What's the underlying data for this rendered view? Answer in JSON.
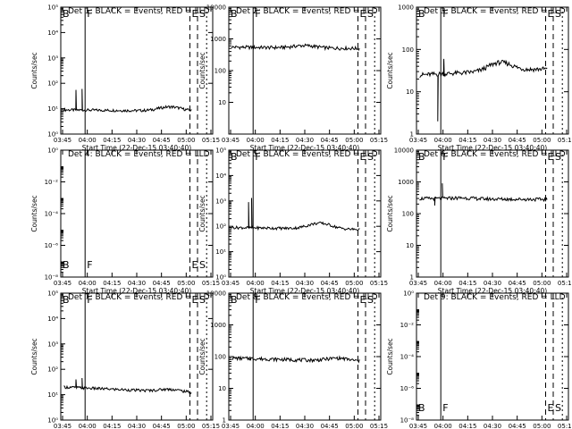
{
  "colors": {
    "events": "#000000",
    "lld": "#d00000",
    "frame": "#000000",
    "background": "#ffffff"
  },
  "x_tick_labels": [
    "03:45",
    "04:00",
    "04:15",
    "04:30",
    "04:45",
    "05:00",
    "05:15"
  ],
  "x_axis_label": "Start Time (22-Dec-15 03:40:40)",
  "y_axis_label": "Counts/sec",
  "chart_data": [
    {
      "type": "line",
      "title": "Det 1: BLACK = Events, RED = LLD",
      "xlim": [
        0,
        100
      ],
      "yscale": "log",
      "ylim": [
        1,
        100000
      ],
      "y_ticks": [
        {
          "v": 1,
          "label": "10⁰"
        },
        {
          "v": 100,
          "label": "10²"
        },
        {
          "v": 10000,
          "label": "10⁴"
        }
      ],
      "y_minor": [
        10,
        1000,
        100000
      ],
      "y_minor_labels": [
        "10¹",
        "10³",
        "10⁵"
      ],
      "markers": [
        {
          "x": 16,
          "label": "F"
        },
        {
          "x": 85,
          "label": "E"
        },
        {
          "x": 90,
          "label": "S"
        }
      ],
      "vlines": [
        {
          "x": 0,
          "style": "solid"
        },
        {
          "x": 16,
          "style": "solid"
        },
        {
          "x": 85,
          "style": "dashed"
        },
        {
          "x": 90,
          "style": "dashed"
        },
        {
          "x": 96,
          "style": "dotted"
        }
      ],
      "corner_labels": [
        {
          "pos": "top-left",
          "text": "B"
        }
      ],
      "lld": {
        "x_start": 0,
        "x_end": 86,
        "level": 60,
        "spikes": [
          {
            "x": 10,
            "v": 300
          },
          {
            "x": 14,
            "v": 700
          }
        ],
        "tail_bump": {
          "x": 95,
          "v": 120
        }
      },
      "events": {
        "x_start": 2,
        "x_end": 86,
        "level": 9,
        "drift_to": 8,
        "hump": {
          "x": 72,
          "v": 13
        },
        "spikes": [
          {
            "x": 10,
            "v": 55
          },
          {
            "x": 14,
            "v": 60
          }
        ]
      }
    },
    {
      "type": "line",
      "title": "Det 2: BLACK = Events, RED = LLD",
      "xlim": [
        0,
        100
      ],
      "yscale": "log",
      "ylim": [
        1,
        10000
      ],
      "y_ticks": [
        {
          "v": 10,
          "label": "10"
        },
        {
          "v": 100,
          "label": "100"
        },
        {
          "v": 1000,
          "label": "1000"
        },
        {
          "v": 10000,
          "label": "10000"
        }
      ],
      "y_minor": [],
      "y_minor_labels": [],
      "markers": [
        {
          "x": 16,
          "label": "F"
        },
        {
          "x": 85,
          "label": "E"
        },
        {
          "x": 90,
          "label": "S"
        }
      ],
      "vlines": [
        {
          "x": 0,
          "style": "solid"
        },
        {
          "x": 16,
          "style": "solid"
        },
        {
          "x": 85,
          "style": "dashed"
        },
        {
          "x": 90,
          "style": "dashed"
        },
        {
          "x": 96,
          "style": "dotted"
        }
      ],
      "corner_labels": [
        {
          "pos": "top-left",
          "text": "B"
        }
      ],
      "lld": {
        "x_start": 0,
        "x_end": 86,
        "level": 1400,
        "spikes": [],
        "tail_bump": {
          "x": 95,
          "v": 1800
        }
      },
      "events": {
        "x_start": 2,
        "x_end": 86,
        "level": 550,
        "drift_to": 500,
        "hump": {
          "x": 50,
          "v": 650
        },
        "spikes": []
      }
    },
    {
      "type": "line",
      "title": "Det 3: BLACK = Events, RED = LLD",
      "xlim": [
        0,
        100
      ],
      "yscale": "log",
      "ylim": [
        1,
        1000
      ],
      "y_ticks": [
        {
          "v": 1,
          "label": "1"
        },
        {
          "v": 10,
          "label": "10"
        },
        {
          "v": 100,
          "label": "100"
        },
        {
          "v": 1000,
          "label": "1000"
        }
      ],
      "y_minor": [],
      "y_minor_labels": [],
      "markers": [
        {
          "x": 16,
          "label": "F"
        },
        {
          "x": 85,
          "label": "E"
        },
        {
          "x": 90,
          "label": "S"
        }
      ],
      "vlines": [
        {
          "x": 0,
          "style": "solid"
        },
        {
          "x": 16,
          "style": "solid"
        },
        {
          "x": 85,
          "style": "dashed"
        },
        {
          "x": 90,
          "style": "dashed"
        },
        {
          "x": 96,
          "style": "dotted"
        }
      ],
      "corner_labels": [
        {
          "pos": "top-left",
          "text": "B"
        }
      ],
      "lld": {
        "x_start": 0,
        "x_end": 86,
        "level": 110,
        "spikes": [
          {
            "x": 16,
            "v": 180
          }
        ],
        "tail_bump": {
          "x": 93,
          "v": 900
        }
      },
      "events": {
        "x_start": 2,
        "x_end": 86,
        "level": 25,
        "drift_to": 35,
        "hump": {
          "x": 55,
          "v": 40
        },
        "spikes": [
          {
            "x": 14,
            "v": 2
          },
          {
            "x": 18,
            "v": 60
          }
        ]
      }
    },
    {
      "type": "line",
      "title": "Det 4: BLACK = Events, RED = LLD",
      "xlim": [
        0,
        100
      ],
      "yscale": "log",
      "ylim": [
        1e-08,
        1
      ],
      "y_ticks": [
        {
          "v": 1e-08,
          "label": "10⁻⁸"
        },
        {
          "v": 1e-06,
          "label": "10⁻⁶"
        },
        {
          "v": 0.0001,
          "label": "10⁻⁴"
        },
        {
          "v": 0.01,
          "label": "10⁻²"
        },
        {
          "v": 1,
          "label": "10⁰"
        }
      ],
      "y_minor": [],
      "y_minor_labels": [],
      "markers": [
        {
          "x": 0,
          "label": "B"
        },
        {
          "x": 16,
          "label": "F"
        },
        {
          "x": 85,
          "label": "E"
        },
        {
          "x": 90,
          "label": "S"
        }
      ],
      "vlines": [
        {
          "x": 0,
          "style": "solid"
        },
        {
          "x": 16,
          "style": "solid"
        },
        {
          "x": 85,
          "style": "dashed"
        },
        {
          "x": 90,
          "style": "dashed"
        },
        {
          "x": 96,
          "style": "dotted"
        }
      ],
      "corner_labels": [],
      "lld": null,
      "events": null
    },
    {
      "type": "line",
      "title": "Det 5: BLACK = Events, RED = LLD",
      "xlim": [
        0,
        100
      ],
      "yscale": "log",
      "ylim": [
        1,
        100000
      ],
      "y_ticks": [
        {
          "v": 1,
          "label": "10⁰"
        },
        {
          "v": 10,
          "label": "10¹"
        },
        {
          "v": 100,
          "label": "10²"
        },
        {
          "v": 1000,
          "label": "10³"
        },
        {
          "v": 10000,
          "label": "10⁴"
        },
        {
          "v": 100000,
          "label": "10⁵"
        }
      ],
      "y_minor": [],
      "y_minor_labels": [],
      "markers": [
        {
          "x": 16,
          "label": "F"
        },
        {
          "x": 85,
          "label": "E"
        },
        {
          "x": 90,
          "label": "S"
        }
      ],
      "vlines": [
        {
          "x": 0,
          "style": "solid"
        },
        {
          "x": 16,
          "style": "solid"
        },
        {
          "x": 85,
          "style": "dashed"
        },
        {
          "x": 90,
          "style": "dashed"
        },
        {
          "x": 96,
          "style": "dotted"
        }
      ],
      "corner_labels": [
        {
          "pos": "top-left",
          "text": "B"
        }
      ],
      "lld": {
        "x_start": 0,
        "x_end": 86,
        "level": 1100,
        "spikes": [],
        "tail_bump": {
          "x": 95,
          "v": 1500
        }
      },
      "events": {
        "x_start": 2,
        "x_end": 86,
        "level": 90,
        "drift_to": 75,
        "hump": {
          "x": 60,
          "v": 150
        },
        "spikes": [
          {
            "x": 13,
            "v": 900
          },
          {
            "x": 15,
            "v": 1300
          }
        ]
      }
    },
    {
      "type": "line",
      "title": "Det 6: BLACK = Events, RED = LLD",
      "xlim": [
        0,
        100
      ],
      "yscale": "log",
      "ylim": [
        1,
        10000
      ],
      "y_ticks": [
        {
          "v": 1,
          "label": "1"
        },
        {
          "v": 10,
          "label": "10"
        },
        {
          "v": 100,
          "label": "100"
        },
        {
          "v": 1000,
          "label": "1000"
        },
        {
          "v": 10000,
          "label": "10000"
        }
      ],
      "y_minor": [],
      "y_minor_labels": [],
      "markers": [
        {
          "x": 16,
          "label": "F"
        },
        {
          "x": 85,
          "label": "E"
        },
        {
          "x": 90,
          "label": "S"
        }
      ],
      "vlines": [
        {
          "x": 0,
          "style": "solid"
        },
        {
          "x": 16,
          "style": "solid"
        },
        {
          "x": 85,
          "style": "dashed"
        },
        {
          "x": 90,
          "style": "dashed"
        },
        {
          "x": 96,
          "style": "dotted"
        }
      ],
      "corner_labels": [
        {
          "pos": "top-left",
          "text": "B"
        }
      ],
      "lld": {
        "x_start": 0,
        "x_end": 86,
        "level": 2200,
        "spikes": [
          {
            "x": 18,
            "v": 4500
          }
        ],
        "tail_bump": {
          "x": 95,
          "v": 2800
        }
      },
      "events": {
        "x_start": 2,
        "x_end": 86,
        "level": 300,
        "drift_to": 280,
        "hump": {
          "x": 30,
          "v": 320
        },
        "spikes": [
          {
            "x": 12,
            "v": 180
          },
          {
            "x": 17,
            "v": 900
          }
        ]
      }
    },
    {
      "type": "line",
      "title": "Det 7: BLACK = Events, RED = LLD",
      "xlim": [
        0,
        100
      ],
      "yscale": "log",
      "ylim": [
        1,
        100000
      ],
      "y_ticks": [
        {
          "v": 1,
          "label": "10⁰"
        },
        {
          "v": 100,
          "label": "10²"
        },
        {
          "v": 10000,
          "label": "10⁴"
        }
      ],
      "y_minor": [
        10,
        1000,
        100000
      ],
      "y_minor_labels": [
        "10¹",
        "10³",
        "10⁵"
      ],
      "markers": [
        {
          "x": 16,
          "label": "F"
        },
        {
          "x": 85,
          "label": "E"
        },
        {
          "x": 90,
          "label": "S"
        }
      ],
      "vlines": [
        {
          "x": 0,
          "style": "solid"
        },
        {
          "x": 16,
          "style": "solid"
        },
        {
          "x": 85,
          "style": "dashed"
        },
        {
          "x": 90,
          "style": "dashed"
        },
        {
          "x": 96,
          "style": "dotted"
        }
      ],
      "corner_labels": [
        {
          "pos": "top-left",
          "text": "B"
        }
      ],
      "lld": {
        "x_start": 0,
        "x_end": 86,
        "level": 40,
        "spikes": [
          {
            "x": 10,
            "v": 400
          },
          {
            "x": 14,
            "v": 700
          }
        ],
        "tail_bump": {
          "x": 94,
          "v": 120
        }
      },
      "events": {
        "x_start": 2,
        "x_end": 86,
        "level": 20,
        "drift_to": 12,
        "hump": {
          "x": 72,
          "v": 25
        },
        "spikes": [
          {
            "x": 10,
            "v": 40
          },
          {
            "x": 14,
            "v": 45
          }
        ]
      }
    },
    {
      "type": "line",
      "title": "Det 8: BLACK = Events, RED = LLD",
      "xlim": [
        0,
        100
      ],
      "yscale": "log",
      "ylim": [
        1,
        10000
      ],
      "y_ticks": [
        {
          "v": 1,
          "label": "1"
        },
        {
          "v": 10,
          "label": "10"
        },
        {
          "v": 100,
          "label": "100"
        },
        {
          "v": 1000,
          "label": "1000"
        },
        {
          "v": 10000,
          "label": "10000"
        }
      ],
      "y_minor": [],
      "y_minor_labels": [],
      "markers": [
        {
          "x": 16,
          "label": "F"
        },
        {
          "x": 85,
          "label": "E"
        },
        {
          "x": 90,
          "label": "S"
        }
      ],
      "vlines": [
        {
          "x": 0,
          "style": "solid"
        },
        {
          "x": 16,
          "style": "solid"
        },
        {
          "x": 85,
          "style": "dashed"
        },
        {
          "x": 90,
          "style": "dashed"
        },
        {
          "x": 96,
          "style": "dotted"
        }
      ],
      "corner_labels": [
        {
          "pos": "top-left",
          "text": "B"
        }
      ],
      "lld": {
        "x_start": 0,
        "x_end": 86,
        "level": 110,
        "spikes": [
          {
            "x": 14,
            "v": 900
          },
          {
            "x": 15,
            "v": 1500
          }
        ],
        "tail_bump": {
          "x": 95,
          "v": 200
        }
      },
      "events": {
        "x_start": 2,
        "x_end": 86,
        "level": 90,
        "drift_to": 70,
        "hump": {
          "x": 72,
          "v": 110
        },
        "spikes": [
          {
            "x": 14,
            "v": 100
          }
        ]
      }
    },
    {
      "type": "line",
      "title": "Det 9: BLACK = Events, RED = LLD",
      "xlim": [
        0,
        100
      ],
      "yscale": "log",
      "ylim": [
        1e-08,
        1
      ],
      "y_ticks": [
        {
          "v": 1e-08,
          "label": "10⁻⁸"
        },
        {
          "v": 1e-06,
          "label": "10⁻⁶"
        },
        {
          "v": 0.0001,
          "label": "10⁻⁴"
        },
        {
          "v": 0.01,
          "label": "10⁻²"
        },
        {
          "v": 1,
          "label": "10⁰"
        }
      ],
      "y_minor": [],
      "y_minor_labels": [],
      "markers": [
        {
          "x": 0,
          "label": "B"
        },
        {
          "x": 16,
          "label": "F"
        },
        {
          "x": 85,
          "label": "E"
        },
        {
          "x": 90,
          "label": "S"
        }
      ],
      "vlines": [
        {
          "x": 0,
          "style": "solid"
        },
        {
          "x": 16,
          "style": "solid"
        },
        {
          "x": 85,
          "style": "dashed"
        },
        {
          "x": 90,
          "style": "dashed"
        },
        {
          "x": 96,
          "style": "dotted"
        }
      ],
      "corner_labels": [],
      "lld": null,
      "events": null
    }
  ]
}
